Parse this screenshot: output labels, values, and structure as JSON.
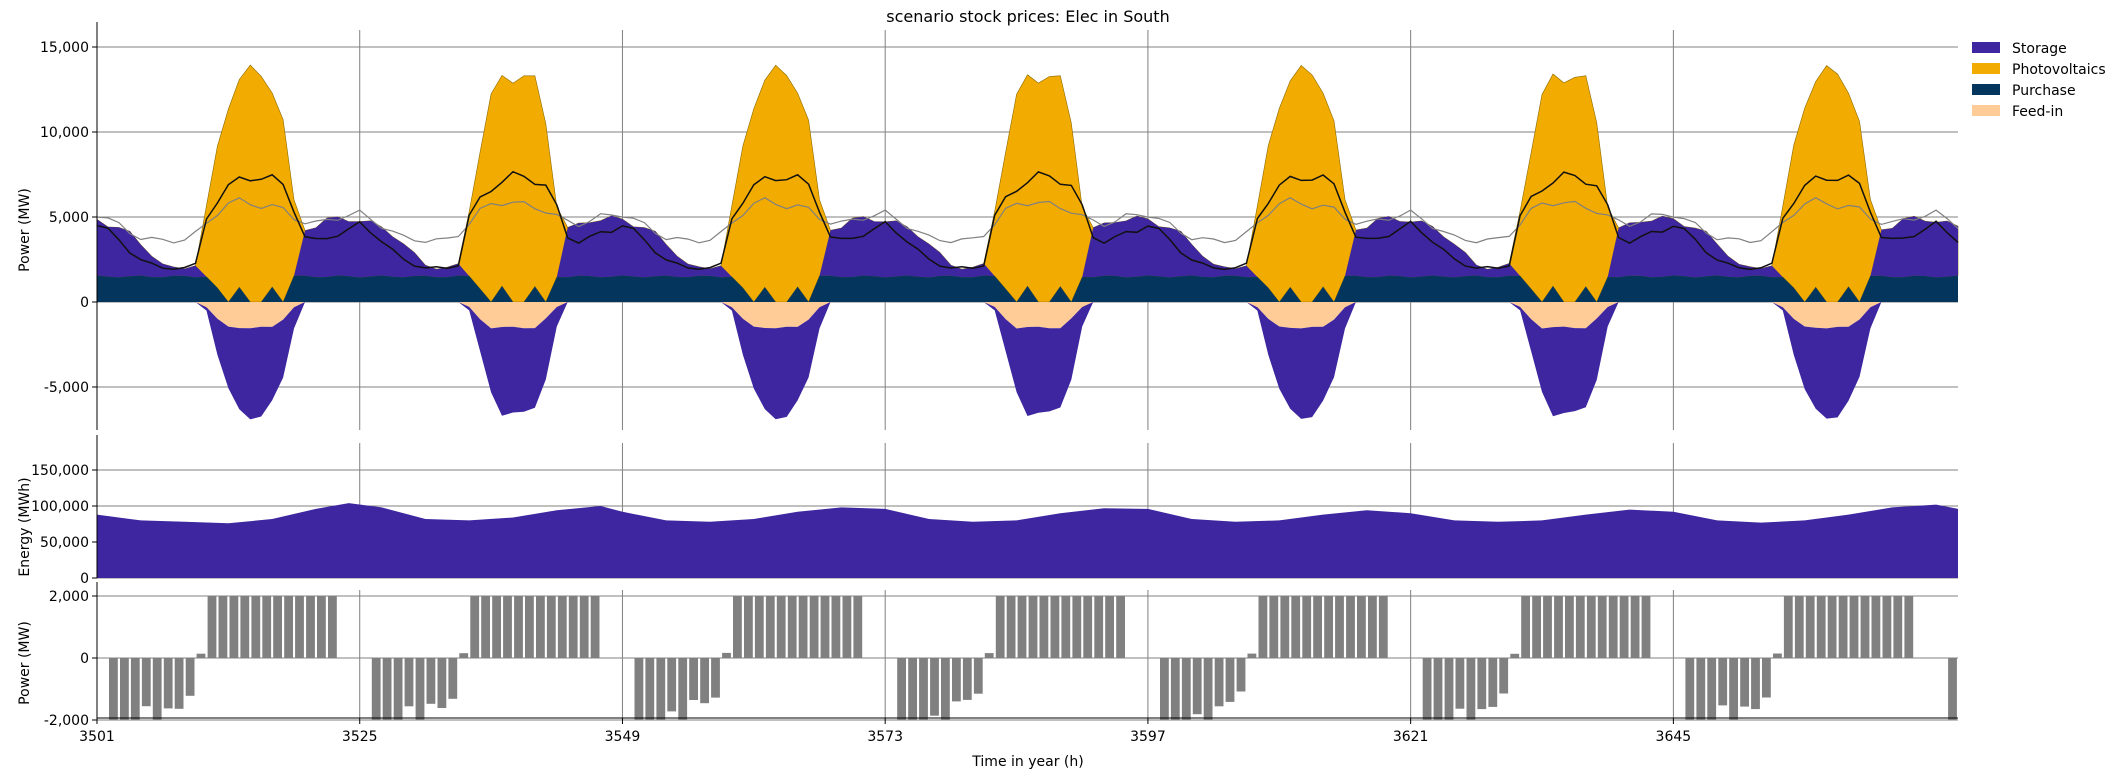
{
  "chart_data": [
    {
      "type": "area",
      "title": "scenario stock prices: Elec in South",
      "ylabel": "Power (MW)",
      "ylim": [
        -7800,
        16200
      ],
      "yticks": [
        -5000,
        0,
        5000,
        10000,
        15000
      ],
      "ytick_labels": [
        "-5,000",
        "0",
        "5,000",
        "10,000",
        "15,000"
      ],
      "x_start": 3501,
      "x_end": 3671,
      "grid": true,
      "legend": {
        "placement": "outside-top-right",
        "entries": [
          {
            "name": "Storage",
            "color": "#3d26a0"
          },
          {
            "name": "Photovoltaics",
            "color": "#f2ab00"
          },
          {
            "name": "Purchase",
            "color": "#04355c"
          },
          {
            "name": "Feed-in",
            "color": "#ffcb96"
          }
        ]
      },
      "series_description": "Stacked positive supply (Purchase base, Photovoltaics and Storage peaks each ~24 h) and negative sinks (Feed-in, Storage charging); black line = demand, grey line = reference demand",
      "daily_profile": {
        "hour_of_day": [
          0,
          1,
          2,
          3,
          4,
          5,
          6,
          7,
          8,
          9,
          10,
          11,
          12,
          13,
          14,
          15,
          16,
          17,
          18,
          19,
          20,
          21,
          22,
          23
        ],
        "photovoltaics_top": [
          4800,
          4600,
          4400,
          4000,
          3400,
          2800,
          2200,
          2000,
          2000,
          2200,
          5500,
          9000,
          11800,
          13200,
          13400,
          13300,
          12800,
          10600,
          5800,
          4300,
          4500,
          4800,
          4900,
          4900
        ],
        "purchase": [
          1500,
          1500,
          1500,
          1500,
          1500,
          1500,
          1500,
          1500,
          1500,
          1500,
          1500,
          800,
          0,
          900,
          0,
          0,
          900,
          0,
          1500,
          1500,
          1500,
          1500,
          1500,
          1500
        ],
        "feed_in_bottom": [
          0,
          0,
          0,
          0,
          0,
          0,
          0,
          0,
          0,
          0,
          -300,
          -1000,
          -1500,
          -1500,
          -1500,
          -1500,
          -1500,
          -1000,
          -300,
          0,
          0,
          0,
          0,
          0
        ],
        "storage_bottom": [
          0,
          0,
          0,
          0,
          0,
          0,
          0,
          0,
          0,
          0,
          -500,
          -3000,
          -5200,
          -6500,
          -6700,
          -6600,
          -6000,
          -4500,
          -1500,
          0,
          0,
          0,
          0,
          0
        ],
        "demand_line": [
          4600,
          4200,
          3600,
          3000,
          2500,
          2200,
          2000,
          2000,
          2000,
          2200,
          5000,
          6000,
          6700,
          7200,
          7400,
          7300,
          7200,
          6900,
          5500,
          3800,
          3600,
          3800,
          4000,
          4200
        ],
        "reference_line": [
          5200,
          4900,
          4500,
          4100,
          3800,
          3700,
          3600,
          3600,
          3700,
          4000,
          4600,
          5300,
          5800,
          5900,
          5800,
          5700,
          5600,
          5400,
          5000,
          4700,
          4600,
          4800,
          5000,
          5100
        ]
      }
    },
    {
      "type": "area",
      "ylabel": "Energy (MWh)",
      "ylim": [
        0,
        180000
      ],
      "yticks": [
        0,
        50000,
        100000,
        150000
      ],
      "ytick_labels": [
        "0",
        "50,000",
        "100,000",
        "150,000"
      ],
      "grid": true,
      "color": "#3d26a0",
      "x": [
        3501,
        3505,
        3509,
        3513,
        3517,
        3521,
        3524,
        3527,
        3531,
        3535,
        3539,
        3543,
        3547,
        3549,
        3553,
        3557,
        3561,
        3565,
        3569,
        3573,
        3577,
        3581,
        3585,
        3589,
        3593,
        3597,
        3601,
        3605,
        3609,
        3613,
        3617,
        3621,
        3625,
        3629,
        3633,
        3637,
        3641,
        3645,
        3649,
        3653,
        3657,
        3661,
        3665,
        3669,
        3671
      ],
      "values": [
        88000,
        80000,
        78000,
        76000,
        82000,
        96000,
        104000,
        98000,
        82000,
        80000,
        84000,
        94000,
        100000,
        92000,
        80000,
        78000,
        82000,
        92000,
        98000,
        96000,
        82000,
        78000,
        80000,
        90000,
        97000,
        96000,
        82000,
        78000,
        80000,
        88000,
        94000,
        90000,
        80000,
        78000,
        80000,
        88000,
        95000,
        92000,
        80000,
        77000,
        80000,
        88000,
        98000,
        102000,
        96000
      ]
    },
    {
      "type": "bar",
      "ylabel": "Power (MW)",
      "xlabel": "Time in year (h)",
      "ylim": [
        -2000,
        2000
      ],
      "yticks": [
        -2000,
        0,
        2000
      ],
      "ytick_labels": [
        "-2,000",
        "0",
        "2,000"
      ],
      "xticks": [
        3501,
        3525,
        3549,
        3573,
        3597,
        3621,
        3645
      ],
      "xtick_labels": [
        "3501",
        "3525",
        "3549",
        "3573",
        "3597",
        "3621",
        "3645"
      ],
      "grid": true,
      "color": "#808080",
      "daily_values": [
        0,
        -2000,
        -2000,
        -2000,
        -1700,
        -2000,
        -1500,
        -1500,
        -1200,
        150,
        2000,
        2000,
        2000,
        2000,
        2000,
        2000,
        2000,
        2000,
        2000,
        2000,
        2000,
        2000,
        0,
        0
      ],
      "x_start": 3501,
      "x_end": 3671
    }
  ]
}
